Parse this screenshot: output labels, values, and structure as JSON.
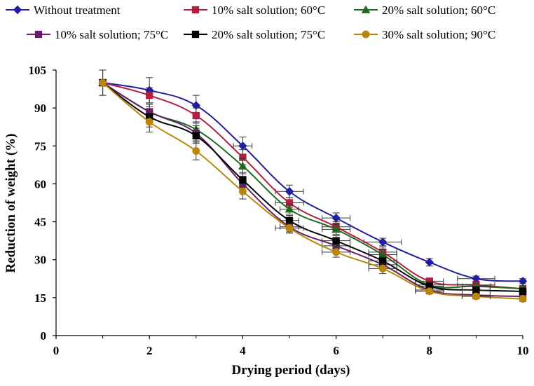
{
  "chart_data": {
    "type": "line",
    "title": "",
    "xlabel": "Drying period (days)",
    "ylabel": "Reduction of weight (%)",
    "xlim": [
      0,
      10
    ],
    "ylim": [
      0,
      105
    ],
    "xticks": [
      0,
      2,
      4,
      6,
      8,
      10
    ],
    "yticks": [
      0,
      15,
      30,
      45,
      60,
      75,
      90,
      105
    ],
    "xtick_labels": [
      "0",
      "2",
      "4",
      "6",
      "8",
      "10"
    ],
    "ytick_labels": [
      "0",
      "15",
      "30",
      "45",
      "60",
      "75",
      "90",
      "105"
    ],
    "grid": false,
    "legend_position": "top",
    "x": [
      1,
      2,
      3,
      4,
      5,
      6,
      7,
      8,
      9,
      10
    ],
    "series": [
      {
        "name": "Without treatment",
        "color": "#1f1fa0",
        "marker": "diamond",
        "values": [
          100,
          97,
          91,
          75,
          57,
          46.5,
          37,
          29,
          22.5,
          21.5
        ],
        "y_err": [
          5,
          5,
          4,
          3.5,
          2.5,
          2,
          1.5,
          1.5,
          1,
          1
        ],
        "x_err": [
          0,
          0,
          0,
          0.2,
          0.3,
          0.3,
          0.4,
          0,
          0.4,
          0
        ]
      },
      {
        "name": "10% salt solution; 60°C",
        "color": "#b02040",
        "marker": "square",
        "values": [
          100,
          95,
          87,
          70.5,
          52.5,
          43,
          33,
          21.5,
          20,
          18.5
        ],
        "y_err": [
          0,
          3,
          3,
          3,
          2,
          2,
          2,
          1,
          1,
          1
        ],
        "x_err": [
          0,
          0,
          0,
          0,
          0.3,
          0.3,
          0.3,
          0.3,
          0.4,
          0
        ]
      },
      {
        "name": "20% salt solution; 60°C",
        "color": "#1e6b1e",
        "marker": "triangle",
        "values": [
          100,
          88.5,
          81.5,
          67,
          50,
          42,
          32,
          20,
          19.5,
          18.5
        ],
        "y_err": [
          0,
          3,
          3,
          3,
          2,
          2,
          2,
          1.5,
          1,
          1
        ],
        "x_err": [
          0,
          0,
          0,
          0,
          0.2,
          0.3,
          0.3,
          0.3,
          0.3,
          0
        ]
      },
      {
        "name": "10% salt solution; 75°C",
        "color": "#6b1f6b",
        "marker": "square",
        "values": [
          100,
          88.5,
          80,
          60,
          43,
          35.5,
          28,
          18,
          16,
          15.5
        ],
        "y_err": [
          0,
          3,
          3,
          3,
          2,
          2,
          2,
          1,
          1,
          1
        ],
        "x_err": [
          0,
          0,
          0,
          0,
          0.2,
          0.3,
          0.3,
          0.3,
          0.3,
          0
        ]
      },
      {
        "name": "20% salt solution; 75°C",
        "color": "#000000",
        "marker": "square",
        "values": [
          100,
          86.5,
          79,
          61.5,
          45.5,
          37.5,
          29.5,
          19.5,
          18,
          17.5
        ],
        "y_err": [
          0,
          4,
          3,
          3,
          2,
          2,
          2,
          1.5,
          1,
          1
        ],
        "x_err": [
          0,
          0,
          0,
          0,
          0.2,
          0.3,
          0.3,
          0.3,
          0.3,
          0
        ]
      },
      {
        "name": "30% salt solution; 90°C",
        "color": "#b8860b",
        "marker": "circle",
        "values": [
          100,
          84.5,
          73,
          57,
          42.5,
          33,
          26.5,
          17.5,
          15.5,
          14.5
        ],
        "y_err": [
          5,
          4,
          3.5,
          3,
          2,
          2,
          2,
          1,
          1,
          1
        ],
        "x_err": [
          0,
          0,
          0,
          0,
          0.3,
          0.3,
          0.3,
          0.3,
          0.3,
          0
        ]
      }
    ]
  }
}
